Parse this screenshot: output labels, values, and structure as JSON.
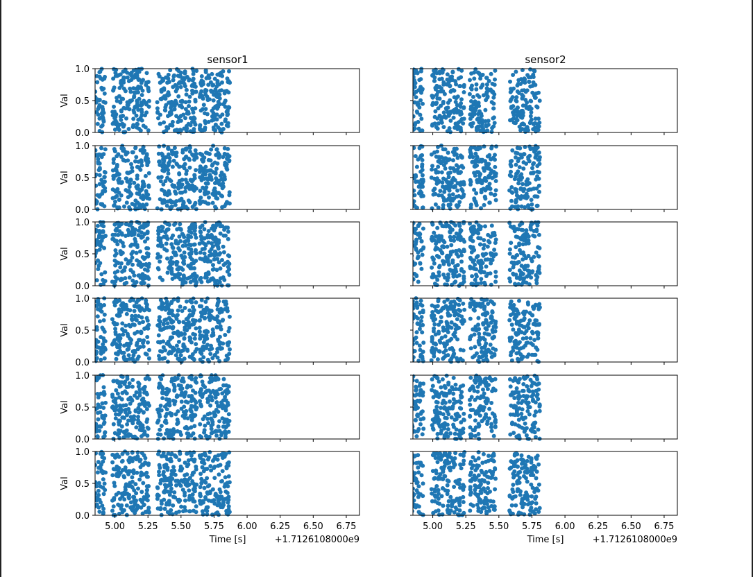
{
  "figure": {
    "background": "#ffffff",
    "marker_color": "#1f77b4"
  },
  "chart_data": {
    "type": "scatter",
    "rows": 6,
    "cols": 2,
    "column_titles": [
      "sensor1",
      "sensor2"
    ],
    "ylabel": "Val",
    "xlabel": "Time [s]",
    "offset_text": "+1.7126108000e9",
    "ylim": [
      0.0,
      1.0
    ],
    "yticks": [
      0.0,
      0.5,
      1.0
    ],
    "ytick_labels": [
      "0.0",
      "0.5",
      "1.0"
    ],
    "xlim": [
      4.85,
      6.85
    ],
    "xticks": [
      5.0,
      5.25,
      5.5,
      5.75,
      6.0,
      6.25,
      6.5,
      6.75
    ],
    "xtick_labels": [
      "5.00",
      "5.25",
      "5.50",
      "5.75",
      "6.00",
      "6.25",
      "6.50",
      "6.75"
    ],
    "series": [
      {
        "name": "sensor1",
        "x_bands": [
          [
            4.85,
            4.93
          ],
          [
            4.98,
            5.26
          ],
          [
            5.32,
            5.62
          ],
          [
            5.64,
            5.87
          ]
        ]
      },
      {
        "name": "sensor2",
        "x_bands": [
          [
            4.82,
            4.93
          ],
          [
            4.99,
            5.24
          ],
          [
            5.28,
            5.48
          ],
          [
            5.58,
            5.81
          ]
        ]
      }
    ]
  }
}
